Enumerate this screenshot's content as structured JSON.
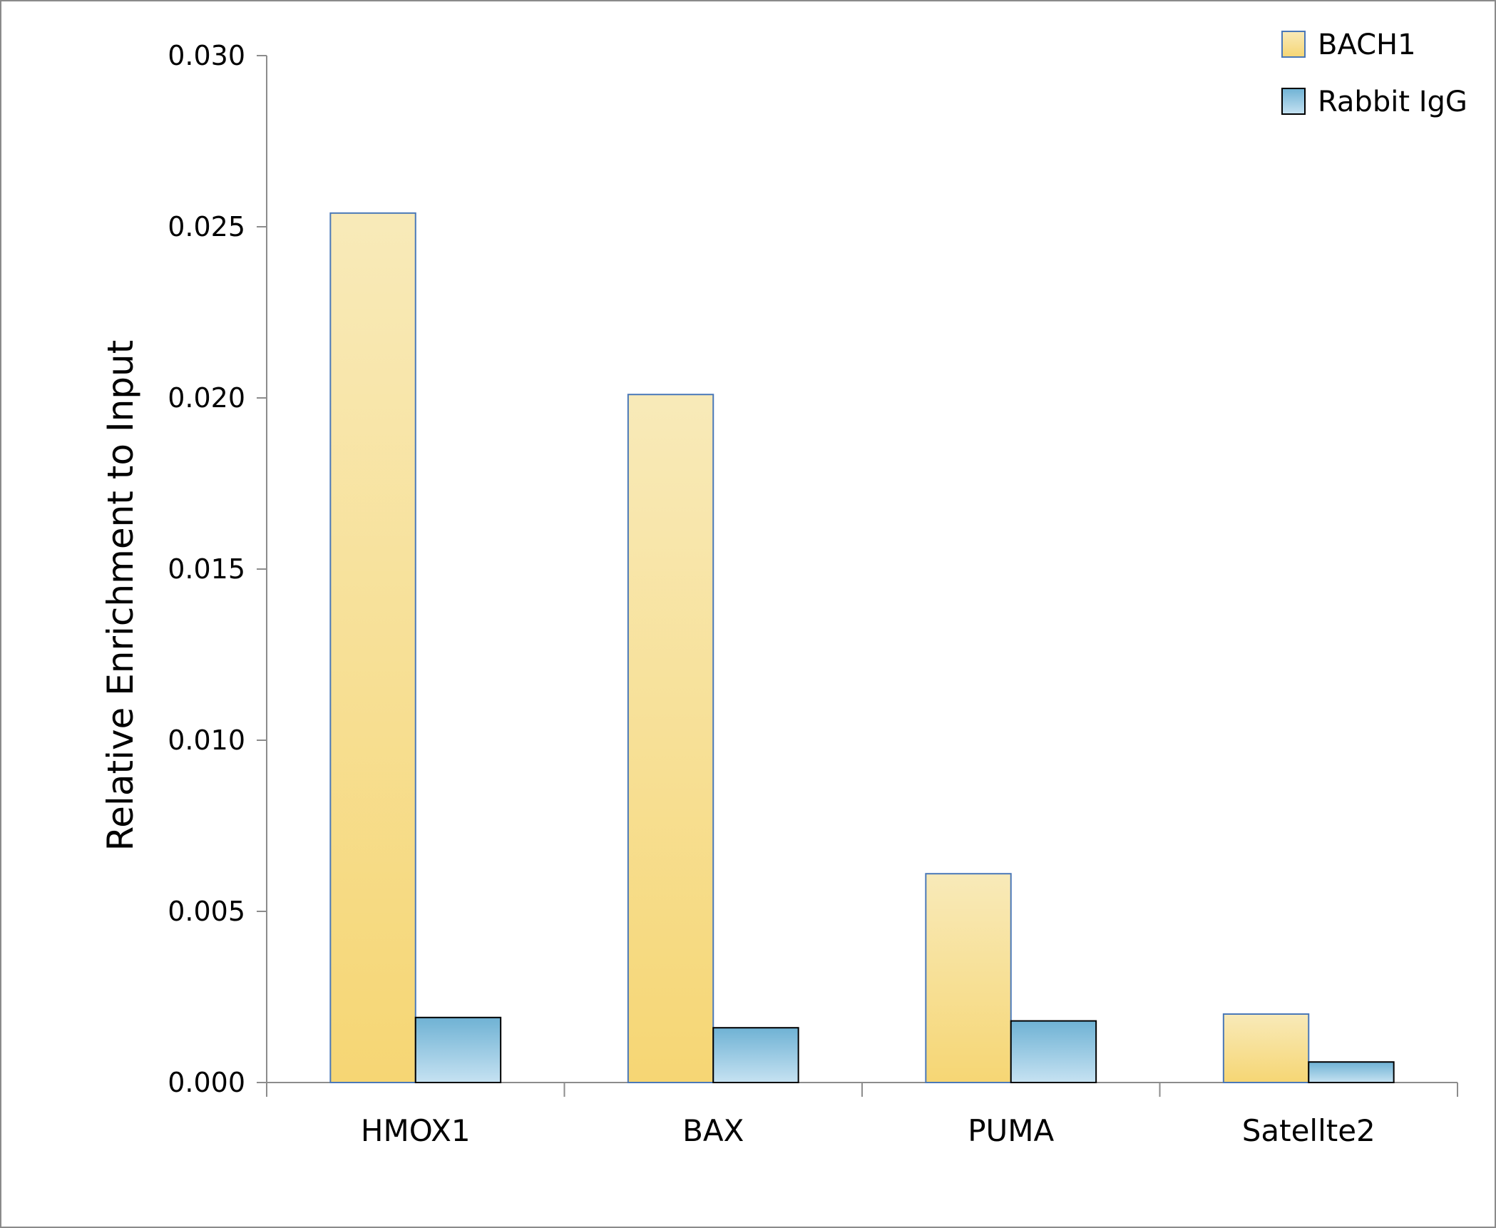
{
  "chart_data": {
    "type": "bar",
    "title": "",
    "xlabel": "",
    "ylabel": "Relative Enrichment to Input",
    "categories": [
      "HMOX1",
      "BAX",
      "PUMA",
      "Satellte2"
    ],
    "series": [
      {
        "name": "BACH1",
        "values": [
          0.0254,
          0.0201,
          0.0061,
          0.002
        ],
        "color_top": "#f8eab9",
        "color_bottom": "#f6d674",
        "stroke": "#4a78b8"
      },
      {
        "name": "Rabbit IgG",
        "values": [
          0.0019,
          0.0016,
          0.0018,
          0.0006
        ],
        "color_top": "#6fb2d4",
        "color_bottom": "#c6e2f2",
        "stroke": "#000000"
      }
    ],
    "ylim": [
      0,
      0.03
    ],
    "yticks": [
      "0.000",
      "0.005",
      "0.010",
      "0.015",
      "0.020",
      "0.025",
      "0.030"
    ],
    "grid": false,
    "legend_position": "top-right"
  }
}
